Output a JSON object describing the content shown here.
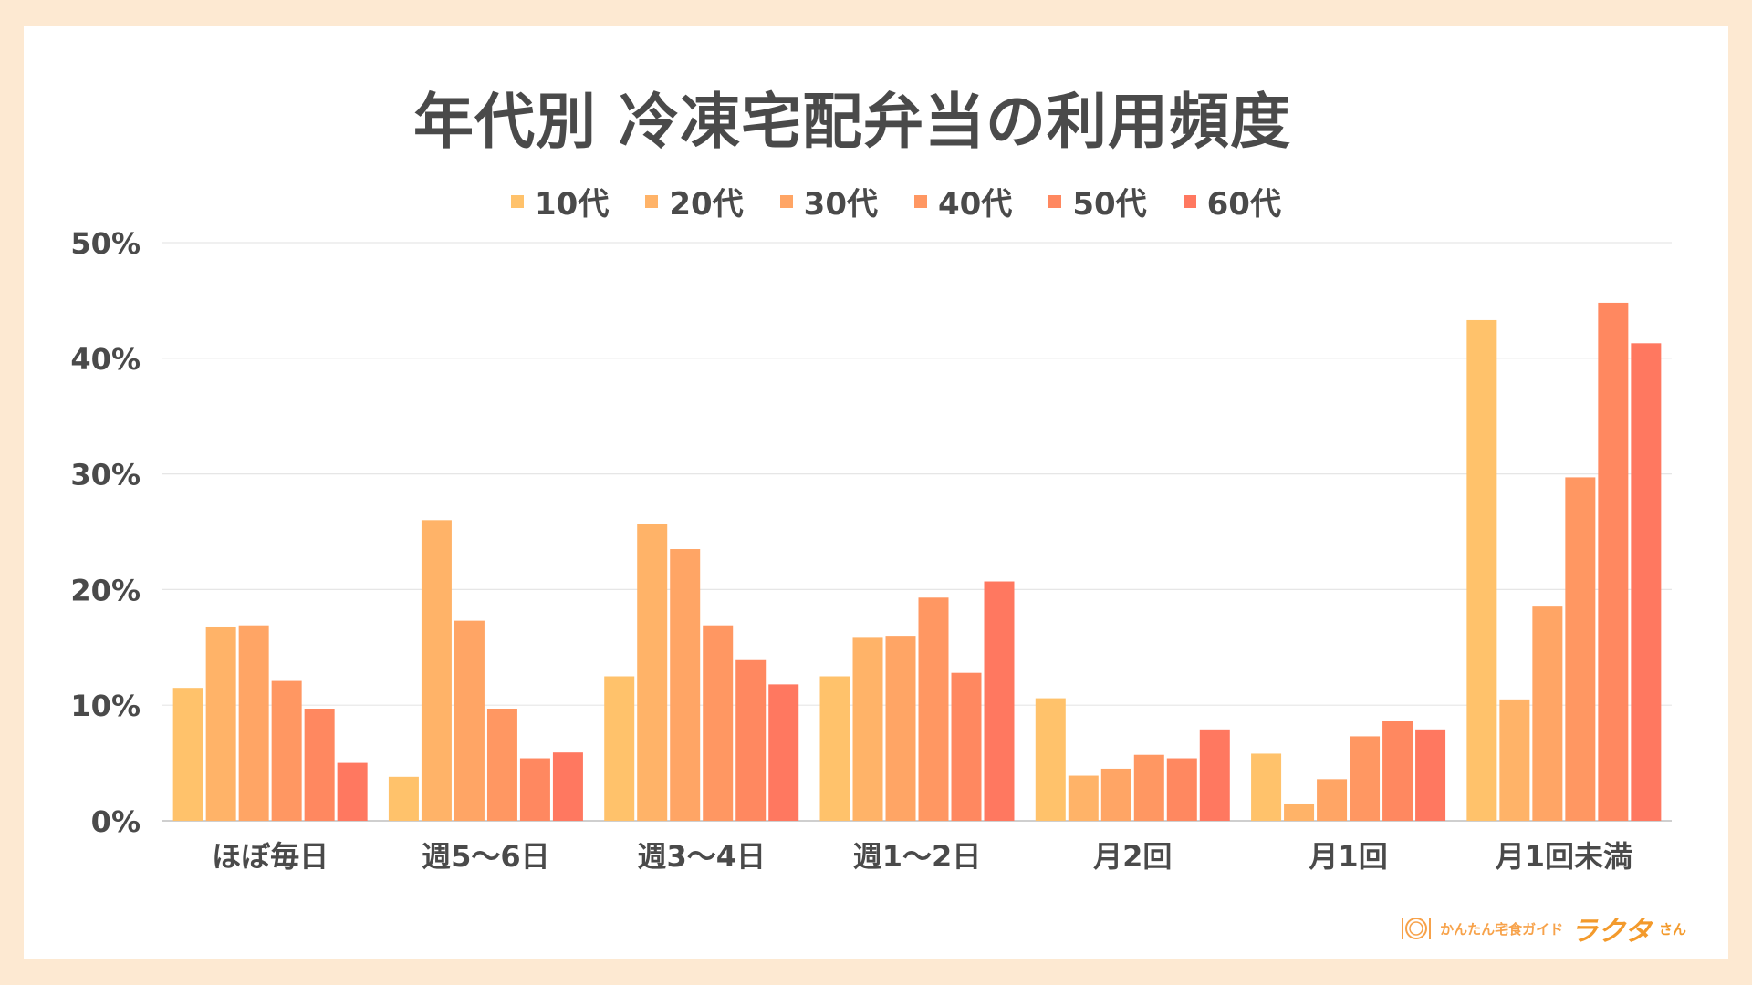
{
  "chart_data": {
    "type": "bar",
    "title": "年代別 冷凍宅配弁当の利用頻度",
    "categories": [
      "ほぼ毎日",
      "週5〜6日",
      "週3〜4日",
      "週1〜2日",
      "月2回",
      "月1回",
      "月1回未満"
    ],
    "series": [
      {
        "name": "10代",
        "color": "#ffc26b",
        "values": [
          11.5,
          3.8,
          12.5,
          12.5,
          10.6,
          5.8,
          43.3
        ]
      },
      {
        "name": "20代",
        "color": "#ffb368",
        "values": [
          16.8,
          26.0,
          25.7,
          15.9,
          3.9,
          1.5,
          10.5
        ]
      },
      {
        "name": "30代",
        "color": "#ffa565",
        "values": [
          16.9,
          17.3,
          23.5,
          16.0,
          4.5,
          3.6,
          18.6
        ]
      },
      {
        "name": "40代",
        "color": "#ff9762",
        "values": [
          12.1,
          9.7,
          16.9,
          19.3,
          5.7,
          7.3,
          29.7
        ]
      },
      {
        "name": "50代",
        "color": "#ff8860",
        "values": [
          9.7,
          5.4,
          13.9,
          12.8,
          5.4,
          8.6,
          44.8
        ]
      },
      {
        "name": "60代",
        "color": "#ff7860",
        "values": [
          5.0,
          5.9,
          11.8,
          20.7,
          7.9,
          7.9,
          41.3
        ]
      }
    ],
    "yticks": [
      "0%",
      "10%",
      "20%",
      "30%",
      "40%",
      "50%"
    ],
    "ylim": [
      0,
      50
    ],
    "grid": true,
    "legend_position": "top"
  },
  "brand": {
    "subtitle": "かんたん宅食ガイド",
    "name": "ラクタ",
    "suffix": "さん",
    "icon": "plate-cutlery-icon"
  }
}
